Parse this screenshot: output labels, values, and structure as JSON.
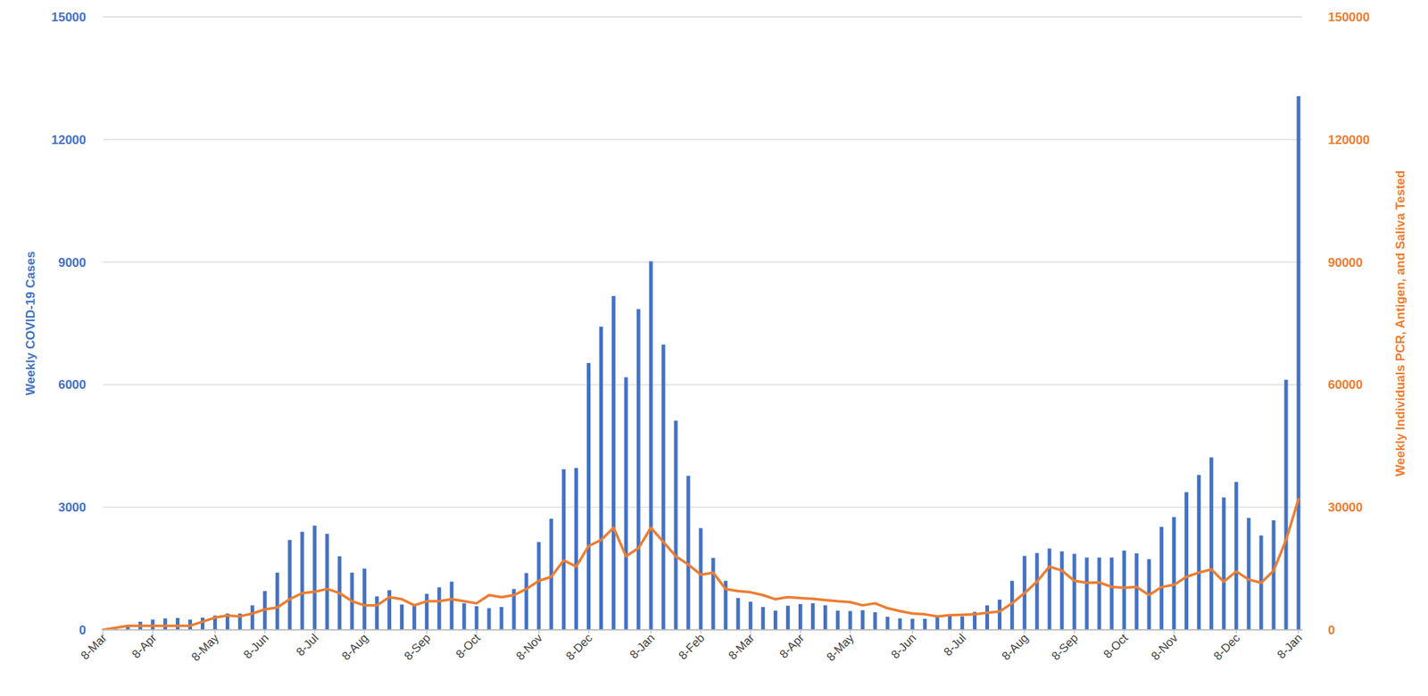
{
  "chart_data": {
    "type": "bar",
    "y_label": "Weekly COVID-19 Cases",
    "y2_label": "Weekly Individuals PCR, Antigen, and Saliva Tested",
    "categories": [
      "8-Mar",
      null,
      null,
      null,
      "8-Apr",
      null,
      null,
      null,
      null,
      "8-May",
      null,
      null,
      null,
      "8-Jun",
      null,
      null,
      null,
      "8-Jul",
      null,
      null,
      null,
      "8-Aug",
      null,
      null,
      null,
      null,
      "8-Sep",
      null,
      null,
      null,
      "8-Oct",
      null,
      null,
      null,
      null,
      "8-Nov",
      null,
      null,
      null,
      "8-Dec",
      null,
      null,
      null,
      null,
      "8-Jan",
      null,
      null,
      null,
      "8-Feb",
      null,
      null,
      null,
      "8-Mar",
      null,
      null,
      null,
      "8-Apr",
      null,
      null,
      null,
      "8-May",
      null,
      null,
      null,
      null,
      "8-Jun",
      null,
      null,
      null,
      "8-Jul",
      null,
      null,
      null,
      null,
      "8-Aug",
      null,
      null,
      null,
      "8-Sep",
      null,
      null,
      null,
      "8-Oct",
      null,
      null,
      null,
      "8-Nov",
      null,
      null,
      null,
      null,
      "8-Dec",
      null,
      null,
      null,
      null,
      "8-Jan"
    ],
    "ylim": [
      0,
      15000
    ],
    "yticks": [
      0,
      3000,
      6000,
      9000,
      12000,
      15000
    ],
    "y2lim": [
      0,
      150000
    ],
    "y2ticks": [
      0,
      30000,
      60000,
      90000,
      120000,
      150000
    ],
    "grid": true,
    "series": [
      {
        "type": "bar",
        "color": "#4472C4",
        "values": [
          0,
          20,
          100,
          200,
          250,
          280,
          290,
          250,
          300,
          350,
          400,
          400,
          600,
          950,
          1400,
          2200,
          2400,
          2550,
          2350,
          1800,
          1400,
          1500,
          820,
          970,
          620,
          600,
          880,
          1040,
          1180,
          650,
          580,
          530,
          560,
          1000,
          1390,
          2150,
          2720,
          3930,
          3960,
          6530,
          7420,
          8170,
          6180,
          7850,
          9020,
          6980,
          5120,
          3770,
          2490,
          1760,
          1200,
          780,
          690,
          560,
          470,
          590,
          630,
          650,
          600,
          470,
          460,
          480,
          430,
          320,
          280,
          270,
          270,
          330,
          360,
          330,
          440,
          600,
          740,
          1200,
          1810,
          1880,
          1990,
          1920,
          1860,
          1770,
          1770,
          1770,
          1940,
          1870,
          1730,
          2520,
          2760,
          3370,
          3790,
          4220,
          3240,
          3620,
          2740,
          2310,
          2680,
          6120,
          13060
        ]
      },
      {
        "type": "line",
        "color": "#ED7D31",
        "axis": "y2",
        "values": [
          0,
          500,
          1000,
          1000,
          1000,
          1000,
          1000,
          1000,
          2000,
          3000,
          3500,
          3300,
          4000,
          5000,
          5500,
          7500,
          9000,
          9300,
          10000,
          9000,
          7000,
          6000,
          6000,
          8000,
          7500,
          6000,
          7000,
          7000,
          7500,
          7000,
          6500,
          8500,
          8000,
          8500,
          10000,
          12000,
          13000,
          17000,
          15500,
          20500,
          22000,
          25000,
          18000,
          20000,
          25000,
          21500,
          18000,
          16000,
          13500,
          14000,
          10000,
          9500,
          9200,
          8500,
          7500,
          8000,
          7800,
          7600,
          7300,
          7000,
          6800,
          6000,
          6500,
          5300,
          4600,
          4000,
          3800,
          3300,
          3600,
          3700,
          3800,
          4200,
          4500,
          6500,
          9000,
          11800,
          15500,
          14500,
          12000,
          11500,
          11600,
          10500,
          10300,
          10500,
          8500,
          10500,
          11000,
          13000,
          14000,
          14800,
          11800,
          14300,
          12300,
          11500,
          14500,
          22000,
          32000
        ]
      }
    ]
  }
}
